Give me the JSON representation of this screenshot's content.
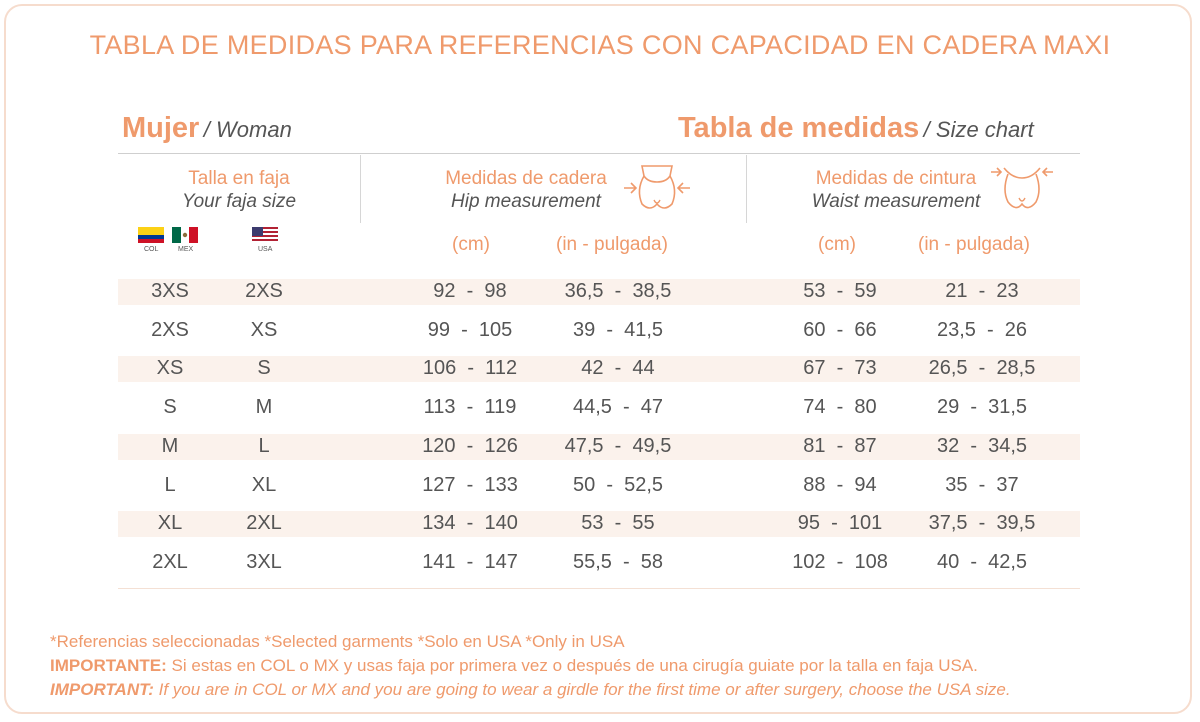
{
  "title": "TABLA DE MEDIDAS PARA REFERENCIAS CON CAPACIDAD EN CADERA MAXI",
  "left_header": {
    "main": "Mujer",
    "sub": "/ Woman"
  },
  "right_header": {
    "main": "Tabla de medidas",
    "sub": "/ Size chart"
  },
  "size_col": {
    "es": "Talla en faja",
    "en": "Your faja size"
  },
  "hip_col": {
    "es": "Medidas de cadera",
    "en": "Hip measurement",
    "unit_cm": "(cm)",
    "unit_in": "(in - pulgada)"
  },
  "waist_col": {
    "es": "Medidas de cintura",
    "en": "Waist measurement",
    "unit_cm": "(cm)",
    "unit_in": "(in - pulgada)"
  },
  "flags": {
    "col": "COL",
    "mex": "MEX",
    "usa": "USA"
  },
  "rows": [
    {
      "colmx": "3XS",
      "usa": "2XS",
      "hip_cm": "92  -  98",
      "hip_in": "36,5  -  38,5",
      "waist_cm": "53  -  59",
      "waist_in": "21  -  23"
    },
    {
      "colmx": "2XS",
      "usa": "XS",
      "hip_cm": "99  -  105",
      "hip_in": "39  -  41,5",
      "waist_cm": "60  -  66",
      "waist_in": "23,5  -  26"
    },
    {
      "colmx": "XS",
      "usa": "S",
      "hip_cm": "106  -  112",
      "hip_in": "42  -  44",
      "waist_cm": "67  -  73",
      "waist_in": "26,5  -  28,5"
    },
    {
      "colmx": "S",
      "usa": "M",
      "hip_cm": "113  -  119",
      "hip_in": "44,5  -  47",
      "waist_cm": "74  -  80",
      "waist_in": "29  -  31,5"
    },
    {
      "colmx": "M",
      "usa": "L",
      "hip_cm": "120  -  126",
      "hip_in": "47,5  -  49,5",
      "waist_cm": "81  -  87",
      "waist_in": "32  -  34,5"
    },
    {
      "colmx": "L",
      "usa": "XL",
      "hip_cm": "127  -  133",
      "hip_in": "50  -  52,5",
      "waist_cm": "88  -  94",
      "waist_in": "35  -  37"
    },
    {
      "colmx": "XL",
      "usa": "2XL",
      "hip_cm": "134  -  140",
      "hip_in": "53  -  55",
      "waist_cm": "95  -  101",
      "waist_in": "37,5  -  39,5"
    },
    {
      "colmx": "2XL",
      "usa": "3XL",
      "hip_cm": "141  -  147",
      "hip_in": "55,5  -  58",
      "waist_cm": "102  -  108",
      "waist_in": "40  -  42,5"
    }
  ],
  "footnotes": {
    "line1": "*Referencias seleccionadas *Selected garments *Solo en USA *Only in USA",
    "line2_label": "IMPORTANTE:",
    "line2_text": " Si estas en COL o MX y usas faja por primera vez o después de una cirugía guiate por la talla en faja USA.",
    "line3_label": "IMPORTANT:",
    "line3_text": " If you are in COL or MX and you are going to wear a girdle for the first time or after surgery, choose the USA size."
  },
  "colors": {
    "accent": "#ef9a6c",
    "band": "#fbf2ec",
    "text": "#555555"
  },
  "icons": {
    "hip": "hip-arrows-icon",
    "waist": "waist-arrows-icon"
  }
}
